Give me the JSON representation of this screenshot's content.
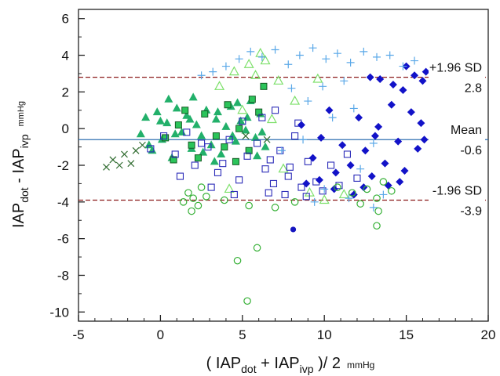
{
  "chart_data": {
    "type": "scatter",
    "title": "",
    "xlabel": {
      "open": "( IAP",
      "sub1": "dot",
      "plus": " + IAP",
      "sub2": "ivp",
      "close": " )/ 2",
      "unit": "mmHg"
    },
    "ylabel": {
      "base1": "IAP",
      "sub1": "dot",
      "minus": " - IAP",
      "sub2": "ivp",
      "unit": "mmHg"
    },
    "xlim": [
      -5,
      20
    ],
    "ylim": [
      -10.5,
      6.5
    ],
    "x_ticks": [
      -5,
      0,
      5,
      10,
      15,
      20
    ],
    "y_ticks": [
      6,
      4,
      2,
      0,
      -2,
      -4,
      -6,
      -8,
      -10
    ],
    "grid": false,
    "reference_lines": [
      {
        "name": "+1.96 SD",
        "value": 2.8,
        "label": "2.8",
        "style": "dashed",
        "color": "#8b1a1a"
      },
      {
        "name": "Mean",
        "value": -0.6,
        "label": "-0.6",
        "style": "solid",
        "color": "#2f6fb0"
      },
      {
        "name": "-1.96 SD",
        "value": -3.9,
        "label": "-3.9",
        "style": "dashed",
        "color": "#8b1a1a"
      }
    ],
    "series": [
      {
        "marker": "filled-triangle",
        "color": "#22b06a",
        "points": [
          [
            -1.2,
            -0.3
          ],
          [
            -0.9,
            0.6
          ],
          [
            -0.5,
            -1.2
          ],
          [
            -0.2,
            0.9
          ],
          [
            0.1,
            -0.6
          ],
          [
            0.4,
            0.3
          ],
          [
            0.7,
            -1.6
          ],
          [
            1.0,
            1.1
          ],
          [
            1.3,
            -0.2
          ],
          [
            1.6,
            0.7
          ],
          [
            1.9,
            -1.1
          ],
          [
            2.2,
            0.2
          ],
          [
            2.5,
            -0.4
          ],
          [
            2.8,
            1.0
          ],
          [
            3.1,
            -0.9
          ],
          [
            3.4,
            0.5
          ],
          [
            3.7,
            -1.4
          ],
          [
            4.0,
            0.1
          ],
          [
            4.3,
            1.2
          ],
          [
            4.6,
            -0.7
          ],
          [
            4.9,
            0.4
          ],
          [
            5.2,
            -0.1
          ],
          [
            5.5,
            1.5
          ],
          [
            5.8,
            -0.5
          ],
          [
            6.1,
            0.8
          ],
          [
            6.4,
            -1.0
          ],
          [
            -0.7,
            -0.9
          ],
          [
            0.0,
            0.4
          ],
          [
            0.9,
            -0.3
          ],
          [
            1.8,
            0.5
          ],
          [
            2.6,
            -1.3
          ],
          [
            3.5,
            0.9
          ],
          [
            4.4,
            -0.4
          ],
          [
            5.3,
            0.6
          ],
          [
            6.2,
            -0.2
          ],
          [
            0.5,
            1.6
          ],
          [
            2.0,
            1.7
          ],
          [
            3.3,
            -1.8
          ],
          [
            4.7,
            1.4
          ],
          [
            5.9,
            -1.5
          ]
        ]
      },
      {
        "marker": "open-triangle",
        "color": "#7de06a",
        "points": [
          [
            4.5,
            3.1
          ],
          [
            5.4,
            3.5
          ],
          [
            6.1,
            4.1
          ],
          [
            6.4,
            3.7
          ],
          [
            5.8,
            2.9
          ],
          [
            7.2,
            2.6
          ],
          [
            9.6,
            2.7
          ],
          [
            8.2,
            1.5
          ],
          [
            5.0,
            1.0
          ],
          [
            6.8,
            0.5
          ],
          [
            9.1,
            -3.5
          ],
          [
            10.0,
            -3.9
          ],
          [
            11.2,
            -3.6
          ],
          [
            7.5,
            -2.2
          ],
          [
            3.6,
            2.3
          ],
          [
            4.2,
            -3.3
          ]
        ]
      },
      {
        "marker": "filled-square-outlined",
        "color": "#2bc45a",
        "points": [
          [
            0.3,
            -0.5
          ],
          [
            1.1,
            0.2
          ],
          [
            1.9,
            -0.9
          ],
          [
            2.7,
            0.8
          ],
          [
            3.4,
            -0.4
          ],
          [
            4.1,
            1.3
          ],
          [
            4.8,
            0.0
          ],
          [
            5.4,
            -1.2
          ],
          [
            6.0,
            0.9
          ],
          [
            6.3,
            2.3
          ],
          [
            2.3,
            -1.6
          ],
          [
            3.9,
            -1.0
          ],
          [
            5.6,
            1.6
          ],
          [
            1.5,
            1.0
          ],
          [
            4.6,
            -1.8
          ],
          [
            0.8,
            -1.7
          ]
        ]
      },
      {
        "marker": "open-square",
        "color": "#2a2ab8",
        "points": [
          [
            -0.6,
            -1.1
          ],
          [
            0.2,
            -0.4
          ],
          [
            0.9,
            -1.4
          ],
          [
            1.6,
            -0.2
          ],
          [
            2.1,
            -2.0
          ],
          [
            2.9,
            -1.0
          ],
          [
            3.5,
            -2.4
          ],
          [
            4.2,
            -0.6
          ],
          [
            4.8,
            -2.8
          ],
          [
            5.3,
            -1.5
          ],
          [
            5.9,
            -0.8
          ],
          [
            6.4,
            -2.2
          ],
          [
            6.9,
            -3.0
          ],
          [
            7.3,
            -1.2
          ],
          [
            7.8,
            -2.6
          ],
          [
            8.2,
            -0.4
          ],
          [
            8.6,
            -3.2
          ],
          [
            9.0,
            -1.8
          ],
          [
            9.5,
            -2.9
          ],
          [
            9.9,
            -3.4
          ],
          [
            10.4,
            -2.0
          ],
          [
            10.9,
            -3.1
          ],
          [
            11.4,
            -1.4
          ],
          [
            12.0,
            -2.7
          ],
          [
            3.1,
            -3.2
          ],
          [
            4.5,
            -3.6
          ],
          [
            6.6,
            -3.5
          ],
          [
            7.6,
            -3.6
          ],
          [
            8.9,
            -3.7
          ],
          [
            1.2,
            -2.6
          ],
          [
            2.5,
            -0.8
          ],
          [
            5.0,
            0.4
          ],
          [
            6.2,
            0.6
          ],
          [
            7.0,
            1.0
          ],
          [
            8.4,
            0.3
          ],
          [
            6.7,
            -1.7
          ],
          [
            7.9,
            -2.1
          ],
          [
            3.8,
            -1.9
          ]
        ]
      },
      {
        "marker": "filled-diamond",
        "color": "#1212c8",
        "points": [
          [
            8.6,
            0.2
          ],
          [
            9.3,
            -1.6
          ],
          [
            9.8,
            -0.5
          ],
          [
            10.3,
            1.0
          ],
          [
            10.7,
            -2.4
          ],
          [
            11.1,
            -0.9
          ],
          [
            11.6,
            -2.0
          ],
          [
            12.1,
            0.6
          ],
          [
            12.5,
            -1.2
          ],
          [
            12.9,
            -2.6
          ],
          [
            13.3,
            0.1
          ],
          [
            13.7,
            -1.9
          ],
          [
            14.1,
            1.3
          ],
          [
            14.5,
            -0.7
          ],
          [
            14.9,
            -2.3
          ],
          [
            15.3,
            0.9
          ],
          [
            15.7,
            -1.1
          ],
          [
            16.0,
            2.6
          ],
          [
            15.5,
            2.9
          ],
          [
            14.8,
            2.1
          ],
          [
            14.2,
            2.4
          ],
          [
            13.4,
            2.7
          ],
          [
            12.8,
            2.8
          ],
          [
            16.2,
            3.1
          ],
          [
            15.0,
            3.4
          ],
          [
            14.6,
            -2.9
          ],
          [
            13.9,
            -3.1
          ],
          [
            12.4,
            -3.2
          ],
          [
            11.8,
            -3.6
          ],
          [
            10.6,
            -3.3
          ],
          [
            9.7,
            -2.8
          ],
          [
            8.9,
            -3.0
          ],
          [
            13.1,
            -0.4
          ],
          [
            15.9,
            0.3
          ],
          [
            16.1,
            -0.6
          ]
        ]
      },
      {
        "marker": "plus",
        "color": "#5aa8e8",
        "points": [
          [
            2.5,
            2.9
          ],
          [
            3.2,
            3.1
          ],
          [
            4.0,
            3.4
          ],
          [
            4.8,
            3.8
          ],
          [
            5.5,
            4.2
          ],
          [
            6.2,
            3.9
          ],
          [
            7.0,
            4.3
          ],
          [
            7.8,
            3.5
          ],
          [
            8.5,
            4.0
          ],
          [
            9.3,
            4.4
          ],
          [
            10.1,
            3.8
          ],
          [
            10.8,
            4.1
          ],
          [
            11.6,
            3.6
          ],
          [
            12.4,
            4.2
          ],
          [
            13.2,
            3.9
          ],
          [
            14.0,
            4.0
          ],
          [
            14.8,
            3.4
          ],
          [
            15.5,
            3.7
          ],
          [
            8.0,
            2.2
          ],
          [
            9.0,
            1.5
          ],
          [
            10.5,
            0.6
          ],
          [
            11.8,
            1.1
          ],
          [
            13.0,
            -0.8
          ],
          [
            12.2,
            -2.2
          ],
          [
            10.0,
            -3.3
          ],
          [
            11.5,
            -3.8
          ],
          [
            13.6,
            -3.6
          ],
          [
            13.0,
            -4.3
          ],
          [
            9.4,
            -4.0
          ],
          [
            7.4,
            -1.2
          ],
          [
            8.7,
            -0.6
          ],
          [
            9.9,
            2.3
          ],
          [
            11.2,
            2.6
          ]
        ]
      },
      {
        "marker": "open-circle",
        "color": "#35b035",
        "points": [
          [
            1.7,
            -3.5
          ],
          [
            2.0,
            -3.8
          ],
          [
            2.3,
            -4.2
          ],
          [
            1.9,
            -4.5
          ],
          [
            2.5,
            -3.2
          ],
          [
            2.8,
            -3.7
          ],
          [
            3.9,
            -3.9
          ],
          [
            5.4,
            -4.2
          ],
          [
            7.0,
            -4.3
          ],
          [
            8.2,
            -4.0
          ],
          [
            10.8,
            -3.2
          ],
          [
            11.7,
            -3.5
          ],
          [
            12.6,
            -3.3
          ],
          [
            13.2,
            -3.8
          ],
          [
            13.6,
            -2.9
          ],
          [
            14.1,
            -3.4
          ],
          [
            12.2,
            -4.1
          ],
          [
            13.3,
            -4.5
          ],
          [
            13.2,
            -5.3
          ],
          [
            5.9,
            -6.5
          ],
          [
            4.7,
            -7.2
          ],
          [
            5.3,
            -9.4
          ],
          [
            1.4,
            -4.0
          ]
        ]
      },
      {
        "marker": "x",
        "color": "#2f6b2f",
        "points": [
          [
            -3.3,
            -2.1
          ],
          [
            -2.9,
            -1.7
          ],
          [
            -2.5,
            -2.0
          ],
          [
            -2.2,
            -1.4
          ],
          [
            -1.8,
            -1.9
          ],
          [
            -1.5,
            -1.2
          ],
          [
            -1.1,
            -0.9
          ],
          [
            5.2,
            -0.4
          ],
          [
            6.5,
            -0.6
          ]
        ]
      },
      {
        "marker": "filled-circle",
        "color": "#1515c0",
        "points": [
          [
            8.1,
            -5.5
          ]
        ]
      }
    ]
  }
}
